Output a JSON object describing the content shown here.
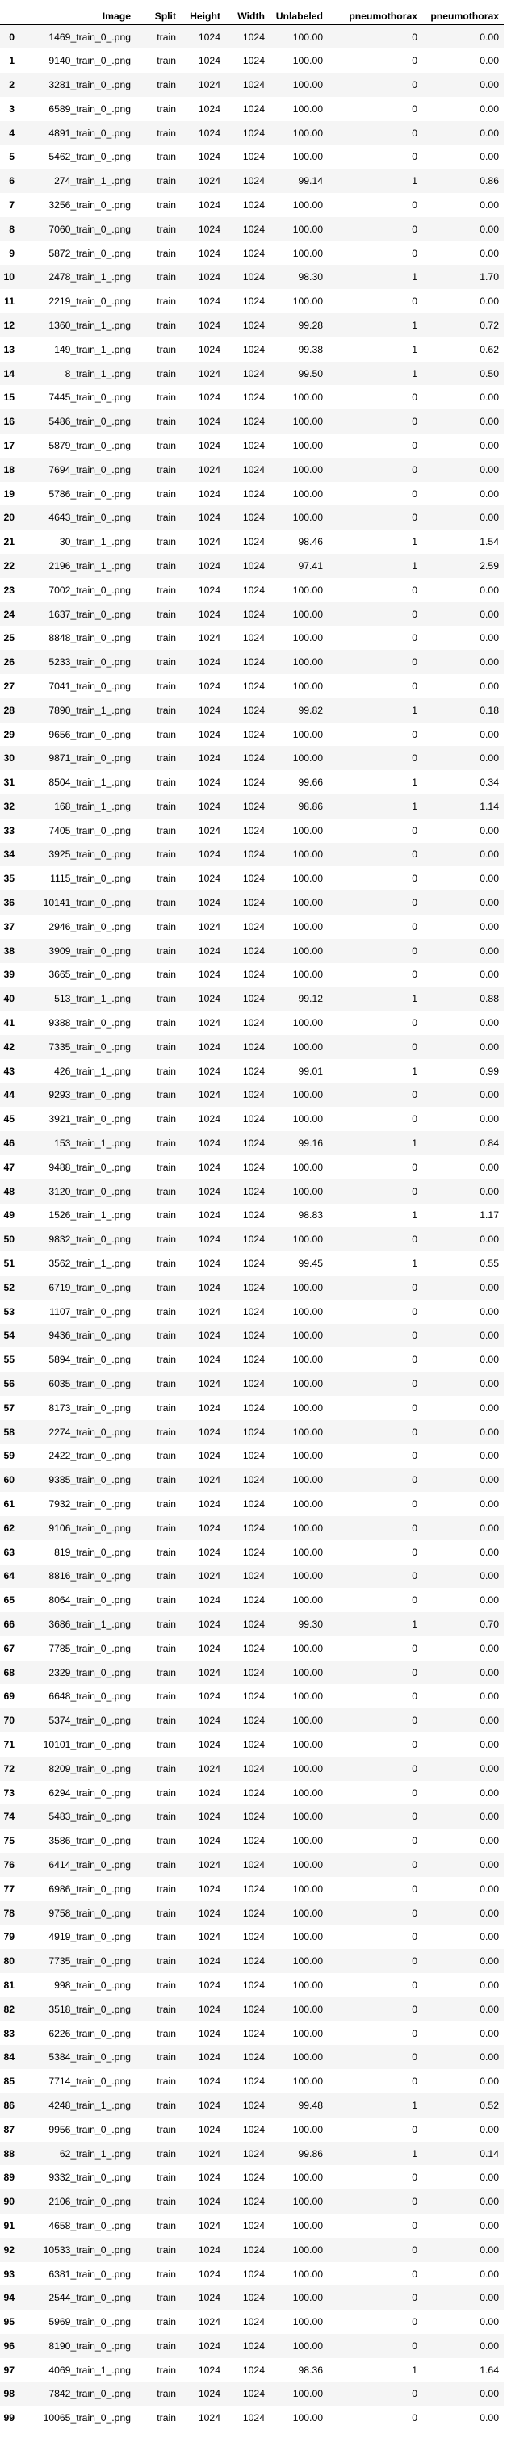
{
  "columns": [
    "",
    "Image",
    "Split",
    "Height",
    "Width",
    "Unlabeled",
    "pneumothorax",
    "pneumothorax"
  ],
  "rows": [
    [
      "0",
      "1469_train_0_.png",
      "train",
      "1024",
      "1024",
      "100.00",
      "0",
      "0.00"
    ],
    [
      "1",
      "9140_train_0_.png",
      "train",
      "1024",
      "1024",
      "100.00",
      "0",
      "0.00"
    ],
    [
      "2",
      "3281_train_0_.png",
      "train",
      "1024",
      "1024",
      "100.00",
      "0",
      "0.00"
    ],
    [
      "3",
      "6589_train_0_.png",
      "train",
      "1024",
      "1024",
      "100.00",
      "0",
      "0.00"
    ],
    [
      "4",
      "4891_train_0_.png",
      "train",
      "1024",
      "1024",
      "100.00",
      "0",
      "0.00"
    ],
    [
      "5",
      "5462_train_0_.png",
      "train",
      "1024",
      "1024",
      "100.00",
      "0",
      "0.00"
    ],
    [
      "6",
      "274_train_1_.png",
      "train",
      "1024",
      "1024",
      "99.14",
      "1",
      "0.86"
    ],
    [
      "7",
      "3256_train_0_.png",
      "train",
      "1024",
      "1024",
      "100.00",
      "0",
      "0.00"
    ],
    [
      "8",
      "7060_train_0_.png",
      "train",
      "1024",
      "1024",
      "100.00",
      "0",
      "0.00"
    ],
    [
      "9",
      "5872_train_0_.png",
      "train",
      "1024",
      "1024",
      "100.00",
      "0",
      "0.00"
    ],
    [
      "10",
      "2478_train_1_.png",
      "train",
      "1024",
      "1024",
      "98.30",
      "1",
      "1.70"
    ],
    [
      "11",
      "2219_train_0_.png",
      "train",
      "1024",
      "1024",
      "100.00",
      "0",
      "0.00"
    ],
    [
      "12",
      "1360_train_1_.png",
      "train",
      "1024",
      "1024",
      "99.28",
      "1",
      "0.72"
    ],
    [
      "13",
      "149_train_1_.png",
      "train",
      "1024",
      "1024",
      "99.38",
      "1",
      "0.62"
    ],
    [
      "14",
      "8_train_1_.png",
      "train",
      "1024",
      "1024",
      "99.50",
      "1",
      "0.50"
    ],
    [
      "15",
      "7445_train_0_.png",
      "train",
      "1024",
      "1024",
      "100.00",
      "0",
      "0.00"
    ],
    [
      "16",
      "5486_train_0_.png",
      "train",
      "1024",
      "1024",
      "100.00",
      "0",
      "0.00"
    ],
    [
      "17",
      "5879_train_0_.png",
      "train",
      "1024",
      "1024",
      "100.00",
      "0",
      "0.00"
    ],
    [
      "18",
      "7694_train_0_.png",
      "train",
      "1024",
      "1024",
      "100.00",
      "0",
      "0.00"
    ],
    [
      "19",
      "5786_train_0_.png",
      "train",
      "1024",
      "1024",
      "100.00",
      "0",
      "0.00"
    ],
    [
      "20",
      "4643_train_0_.png",
      "train",
      "1024",
      "1024",
      "100.00",
      "0",
      "0.00"
    ],
    [
      "21",
      "30_train_1_.png",
      "train",
      "1024",
      "1024",
      "98.46",
      "1",
      "1.54"
    ],
    [
      "22",
      "2196_train_1_.png",
      "train",
      "1024",
      "1024",
      "97.41",
      "1",
      "2.59"
    ],
    [
      "23",
      "7002_train_0_.png",
      "train",
      "1024",
      "1024",
      "100.00",
      "0",
      "0.00"
    ],
    [
      "24",
      "1637_train_0_.png",
      "train",
      "1024",
      "1024",
      "100.00",
      "0",
      "0.00"
    ],
    [
      "25",
      "8848_train_0_.png",
      "train",
      "1024",
      "1024",
      "100.00",
      "0",
      "0.00"
    ],
    [
      "26",
      "5233_train_0_.png",
      "train",
      "1024",
      "1024",
      "100.00",
      "0",
      "0.00"
    ],
    [
      "27",
      "7041_train_0_.png",
      "train",
      "1024",
      "1024",
      "100.00",
      "0",
      "0.00"
    ],
    [
      "28",
      "7890_train_1_.png",
      "train",
      "1024",
      "1024",
      "99.82",
      "1",
      "0.18"
    ],
    [
      "29",
      "9656_train_0_.png",
      "train",
      "1024",
      "1024",
      "100.00",
      "0",
      "0.00"
    ],
    [
      "30",
      "9871_train_0_.png",
      "train",
      "1024",
      "1024",
      "100.00",
      "0",
      "0.00"
    ],
    [
      "31",
      "8504_train_1_.png",
      "train",
      "1024",
      "1024",
      "99.66",
      "1",
      "0.34"
    ],
    [
      "32",
      "168_train_1_.png",
      "train",
      "1024",
      "1024",
      "98.86",
      "1",
      "1.14"
    ],
    [
      "33",
      "7405_train_0_.png",
      "train",
      "1024",
      "1024",
      "100.00",
      "0",
      "0.00"
    ],
    [
      "34",
      "3925_train_0_.png",
      "train",
      "1024",
      "1024",
      "100.00",
      "0",
      "0.00"
    ],
    [
      "35",
      "1115_train_0_.png",
      "train",
      "1024",
      "1024",
      "100.00",
      "0",
      "0.00"
    ],
    [
      "36",
      "10141_train_0_.png",
      "train",
      "1024",
      "1024",
      "100.00",
      "0",
      "0.00"
    ],
    [
      "37",
      "2946_train_0_.png",
      "train",
      "1024",
      "1024",
      "100.00",
      "0",
      "0.00"
    ],
    [
      "38",
      "3909_train_0_.png",
      "train",
      "1024",
      "1024",
      "100.00",
      "0",
      "0.00"
    ],
    [
      "39",
      "3665_train_0_.png",
      "train",
      "1024",
      "1024",
      "100.00",
      "0",
      "0.00"
    ],
    [
      "40",
      "513_train_1_.png",
      "train",
      "1024",
      "1024",
      "99.12",
      "1",
      "0.88"
    ],
    [
      "41",
      "9388_train_0_.png",
      "train",
      "1024",
      "1024",
      "100.00",
      "0",
      "0.00"
    ],
    [
      "42",
      "7335_train_0_.png",
      "train",
      "1024",
      "1024",
      "100.00",
      "0",
      "0.00"
    ],
    [
      "43",
      "426_train_1_.png",
      "train",
      "1024",
      "1024",
      "99.01",
      "1",
      "0.99"
    ],
    [
      "44",
      "9293_train_0_.png",
      "train",
      "1024",
      "1024",
      "100.00",
      "0",
      "0.00"
    ],
    [
      "45",
      "3921_train_0_.png",
      "train",
      "1024",
      "1024",
      "100.00",
      "0",
      "0.00"
    ],
    [
      "46",
      "153_train_1_.png",
      "train",
      "1024",
      "1024",
      "99.16",
      "1",
      "0.84"
    ],
    [
      "47",
      "9488_train_0_.png",
      "train",
      "1024",
      "1024",
      "100.00",
      "0",
      "0.00"
    ],
    [
      "48",
      "3120_train_0_.png",
      "train",
      "1024",
      "1024",
      "100.00",
      "0",
      "0.00"
    ],
    [
      "49",
      "1526_train_1_.png",
      "train",
      "1024",
      "1024",
      "98.83",
      "1",
      "1.17"
    ],
    [
      "50",
      "9832_train_0_.png",
      "train",
      "1024",
      "1024",
      "100.00",
      "0",
      "0.00"
    ],
    [
      "51",
      "3562_train_1_.png",
      "train",
      "1024",
      "1024",
      "99.45",
      "1",
      "0.55"
    ],
    [
      "52",
      "6719_train_0_.png",
      "train",
      "1024",
      "1024",
      "100.00",
      "0",
      "0.00"
    ],
    [
      "53",
      "1107_train_0_.png",
      "train",
      "1024",
      "1024",
      "100.00",
      "0",
      "0.00"
    ],
    [
      "54",
      "9436_train_0_.png",
      "train",
      "1024",
      "1024",
      "100.00",
      "0",
      "0.00"
    ],
    [
      "55",
      "5894_train_0_.png",
      "train",
      "1024",
      "1024",
      "100.00",
      "0",
      "0.00"
    ],
    [
      "56",
      "6035_train_0_.png",
      "train",
      "1024",
      "1024",
      "100.00",
      "0",
      "0.00"
    ],
    [
      "57",
      "8173_train_0_.png",
      "train",
      "1024",
      "1024",
      "100.00",
      "0",
      "0.00"
    ],
    [
      "58",
      "2274_train_0_.png",
      "train",
      "1024",
      "1024",
      "100.00",
      "0",
      "0.00"
    ],
    [
      "59",
      "2422_train_0_.png",
      "train",
      "1024",
      "1024",
      "100.00",
      "0",
      "0.00"
    ],
    [
      "60",
      "9385_train_0_.png",
      "train",
      "1024",
      "1024",
      "100.00",
      "0",
      "0.00"
    ],
    [
      "61",
      "7932_train_0_.png",
      "train",
      "1024",
      "1024",
      "100.00",
      "0",
      "0.00"
    ],
    [
      "62",
      "9106_train_0_.png",
      "train",
      "1024",
      "1024",
      "100.00",
      "0",
      "0.00"
    ],
    [
      "63",
      "819_train_0_.png",
      "train",
      "1024",
      "1024",
      "100.00",
      "0",
      "0.00"
    ],
    [
      "64",
      "8816_train_0_.png",
      "train",
      "1024",
      "1024",
      "100.00",
      "0",
      "0.00"
    ],
    [
      "65",
      "8064_train_0_.png",
      "train",
      "1024",
      "1024",
      "100.00",
      "0",
      "0.00"
    ],
    [
      "66",
      "3686_train_1_.png",
      "train",
      "1024",
      "1024",
      "99.30",
      "1",
      "0.70"
    ],
    [
      "67",
      "7785_train_0_.png",
      "train",
      "1024",
      "1024",
      "100.00",
      "0",
      "0.00"
    ],
    [
      "68",
      "2329_train_0_.png",
      "train",
      "1024",
      "1024",
      "100.00",
      "0",
      "0.00"
    ],
    [
      "69",
      "6648_train_0_.png",
      "train",
      "1024",
      "1024",
      "100.00",
      "0",
      "0.00"
    ],
    [
      "70",
      "5374_train_0_.png",
      "train",
      "1024",
      "1024",
      "100.00",
      "0",
      "0.00"
    ],
    [
      "71",
      "10101_train_0_.png",
      "train",
      "1024",
      "1024",
      "100.00",
      "0",
      "0.00"
    ],
    [
      "72",
      "8209_train_0_.png",
      "train",
      "1024",
      "1024",
      "100.00",
      "0",
      "0.00"
    ],
    [
      "73",
      "6294_train_0_.png",
      "train",
      "1024",
      "1024",
      "100.00",
      "0",
      "0.00"
    ],
    [
      "74",
      "5483_train_0_.png",
      "train",
      "1024",
      "1024",
      "100.00",
      "0",
      "0.00"
    ],
    [
      "75",
      "3586_train_0_.png",
      "train",
      "1024",
      "1024",
      "100.00",
      "0",
      "0.00"
    ],
    [
      "76",
      "6414_train_0_.png",
      "train",
      "1024",
      "1024",
      "100.00",
      "0",
      "0.00"
    ],
    [
      "77",
      "6986_train_0_.png",
      "train",
      "1024",
      "1024",
      "100.00",
      "0",
      "0.00"
    ],
    [
      "78",
      "9758_train_0_.png",
      "train",
      "1024",
      "1024",
      "100.00",
      "0",
      "0.00"
    ],
    [
      "79",
      "4919_train_0_.png",
      "train",
      "1024",
      "1024",
      "100.00",
      "0",
      "0.00"
    ],
    [
      "80",
      "7735_train_0_.png",
      "train",
      "1024",
      "1024",
      "100.00",
      "0",
      "0.00"
    ],
    [
      "81",
      "998_train_0_.png",
      "train",
      "1024",
      "1024",
      "100.00",
      "0",
      "0.00"
    ],
    [
      "82",
      "3518_train_0_.png",
      "train",
      "1024",
      "1024",
      "100.00",
      "0",
      "0.00"
    ],
    [
      "83",
      "6226_train_0_.png",
      "train",
      "1024",
      "1024",
      "100.00",
      "0",
      "0.00"
    ],
    [
      "84",
      "5384_train_0_.png",
      "train",
      "1024",
      "1024",
      "100.00",
      "0",
      "0.00"
    ],
    [
      "85",
      "7714_train_0_.png",
      "train",
      "1024",
      "1024",
      "100.00",
      "0",
      "0.00"
    ],
    [
      "86",
      "4248_train_1_.png",
      "train",
      "1024",
      "1024",
      "99.48",
      "1",
      "0.52"
    ],
    [
      "87",
      "9956_train_0_.png",
      "train",
      "1024",
      "1024",
      "100.00",
      "0",
      "0.00"
    ],
    [
      "88",
      "62_train_1_.png",
      "train",
      "1024",
      "1024",
      "99.86",
      "1",
      "0.14"
    ],
    [
      "89",
      "9332_train_0_.png",
      "train",
      "1024",
      "1024",
      "100.00",
      "0",
      "0.00"
    ],
    [
      "90",
      "2106_train_0_.png",
      "train",
      "1024",
      "1024",
      "100.00",
      "0",
      "0.00"
    ],
    [
      "91",
      "4658_train_0_.png",
      "train",
      "1024",
      "1024",
      "100.00",
      "0",
      "0.00"
    ],
    [
      "92",
      "10533_train_0_.png",
      "train",
      "1024",
      "1024",
      "100.00",
      "0",
      "0.00"
    ],
    [
      "93",
      "6381_train_0_.png",
      "train",
      "1024",
      "1024",
      "100.00",
      "0",
      "0.00"
    ],
    [
      "94",
      "2544_train_0_.png",
      "train",
      "1024",
      "1024",
      "100.00",
      "0",
      "0.00"
    ],
    [
      "95",
      "5969_train_0_.png",
      "train",
      "1024",
      "1024",
      "100.00",
      "0",
      "0.00"
    ],
    [
      "96",
      "8190_train_0_.png",
      "train",
      "1024",
      "1024",
      "100.00",
      "0",
      "0.00"
    ],
    [
      "97",
      "4069_train_1_.png",
      "train",
      "1024",
      "1024",
      "98.36",
      "1",
      "1.64"
    ],
    [
      "98",
      "7842_train_0_.png",
      "train",
      "1024",
      "1024",
      "100.00",
      "0",
      "0.00"
    ],
    [
      "99",
      "10065_train_0_.png",
      "train",
      "1024",
      "1024",
      "100.00",
      "0",
      "0.00"
    ]
  ]
}
